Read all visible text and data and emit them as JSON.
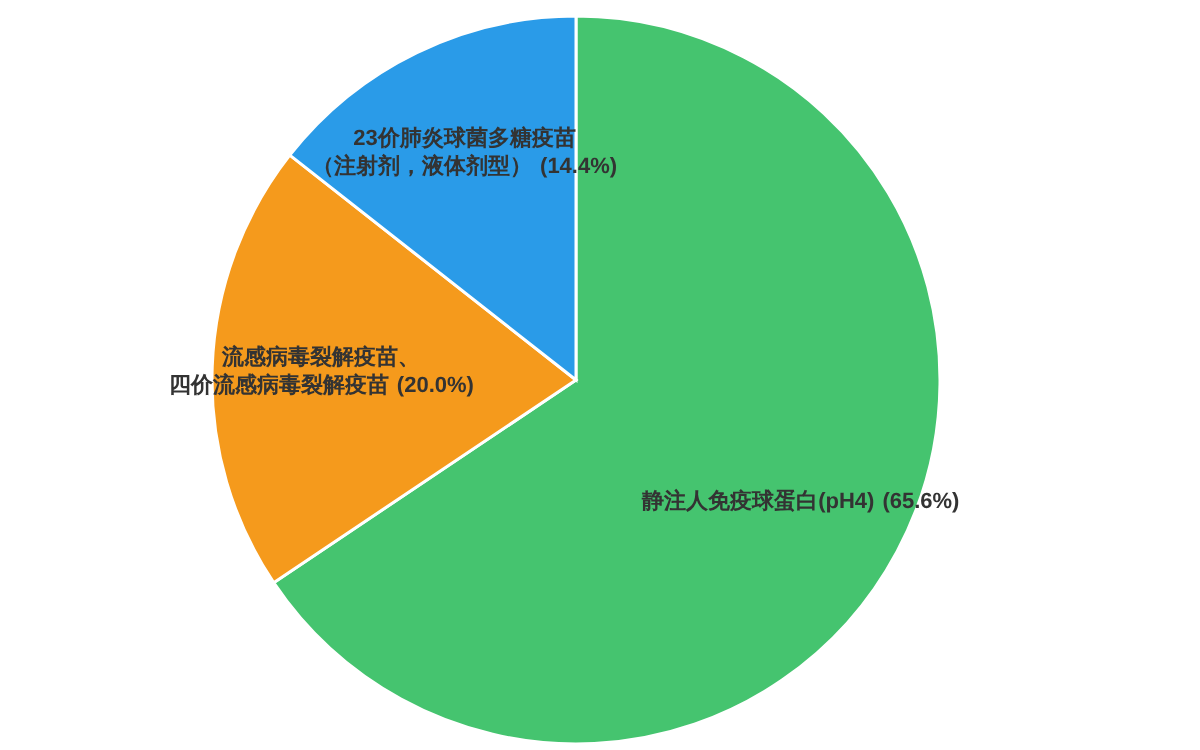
{
  "chart_data": {
    "type": "pie",
    "categories": [
      "静注人免疫球蛋白(pH4)",
      "流感病毒裂解疫苗、四价流感病毒裂解疫苗",
      "23价肺炎球菌多糖疫苗（注射剂，液体剂型）"
    ],
    "values": [
      65.6,
      20.0,
      14.4
    ],
    "colors": [
      "#45c46f",
      "#f59a1c",
      "#2a9be8"
    ],
    "value_labels": [
      "(65.6%)",
      "(20.0%)",
      "(14.4%)"
    ],
    "legend": false
  }
}
